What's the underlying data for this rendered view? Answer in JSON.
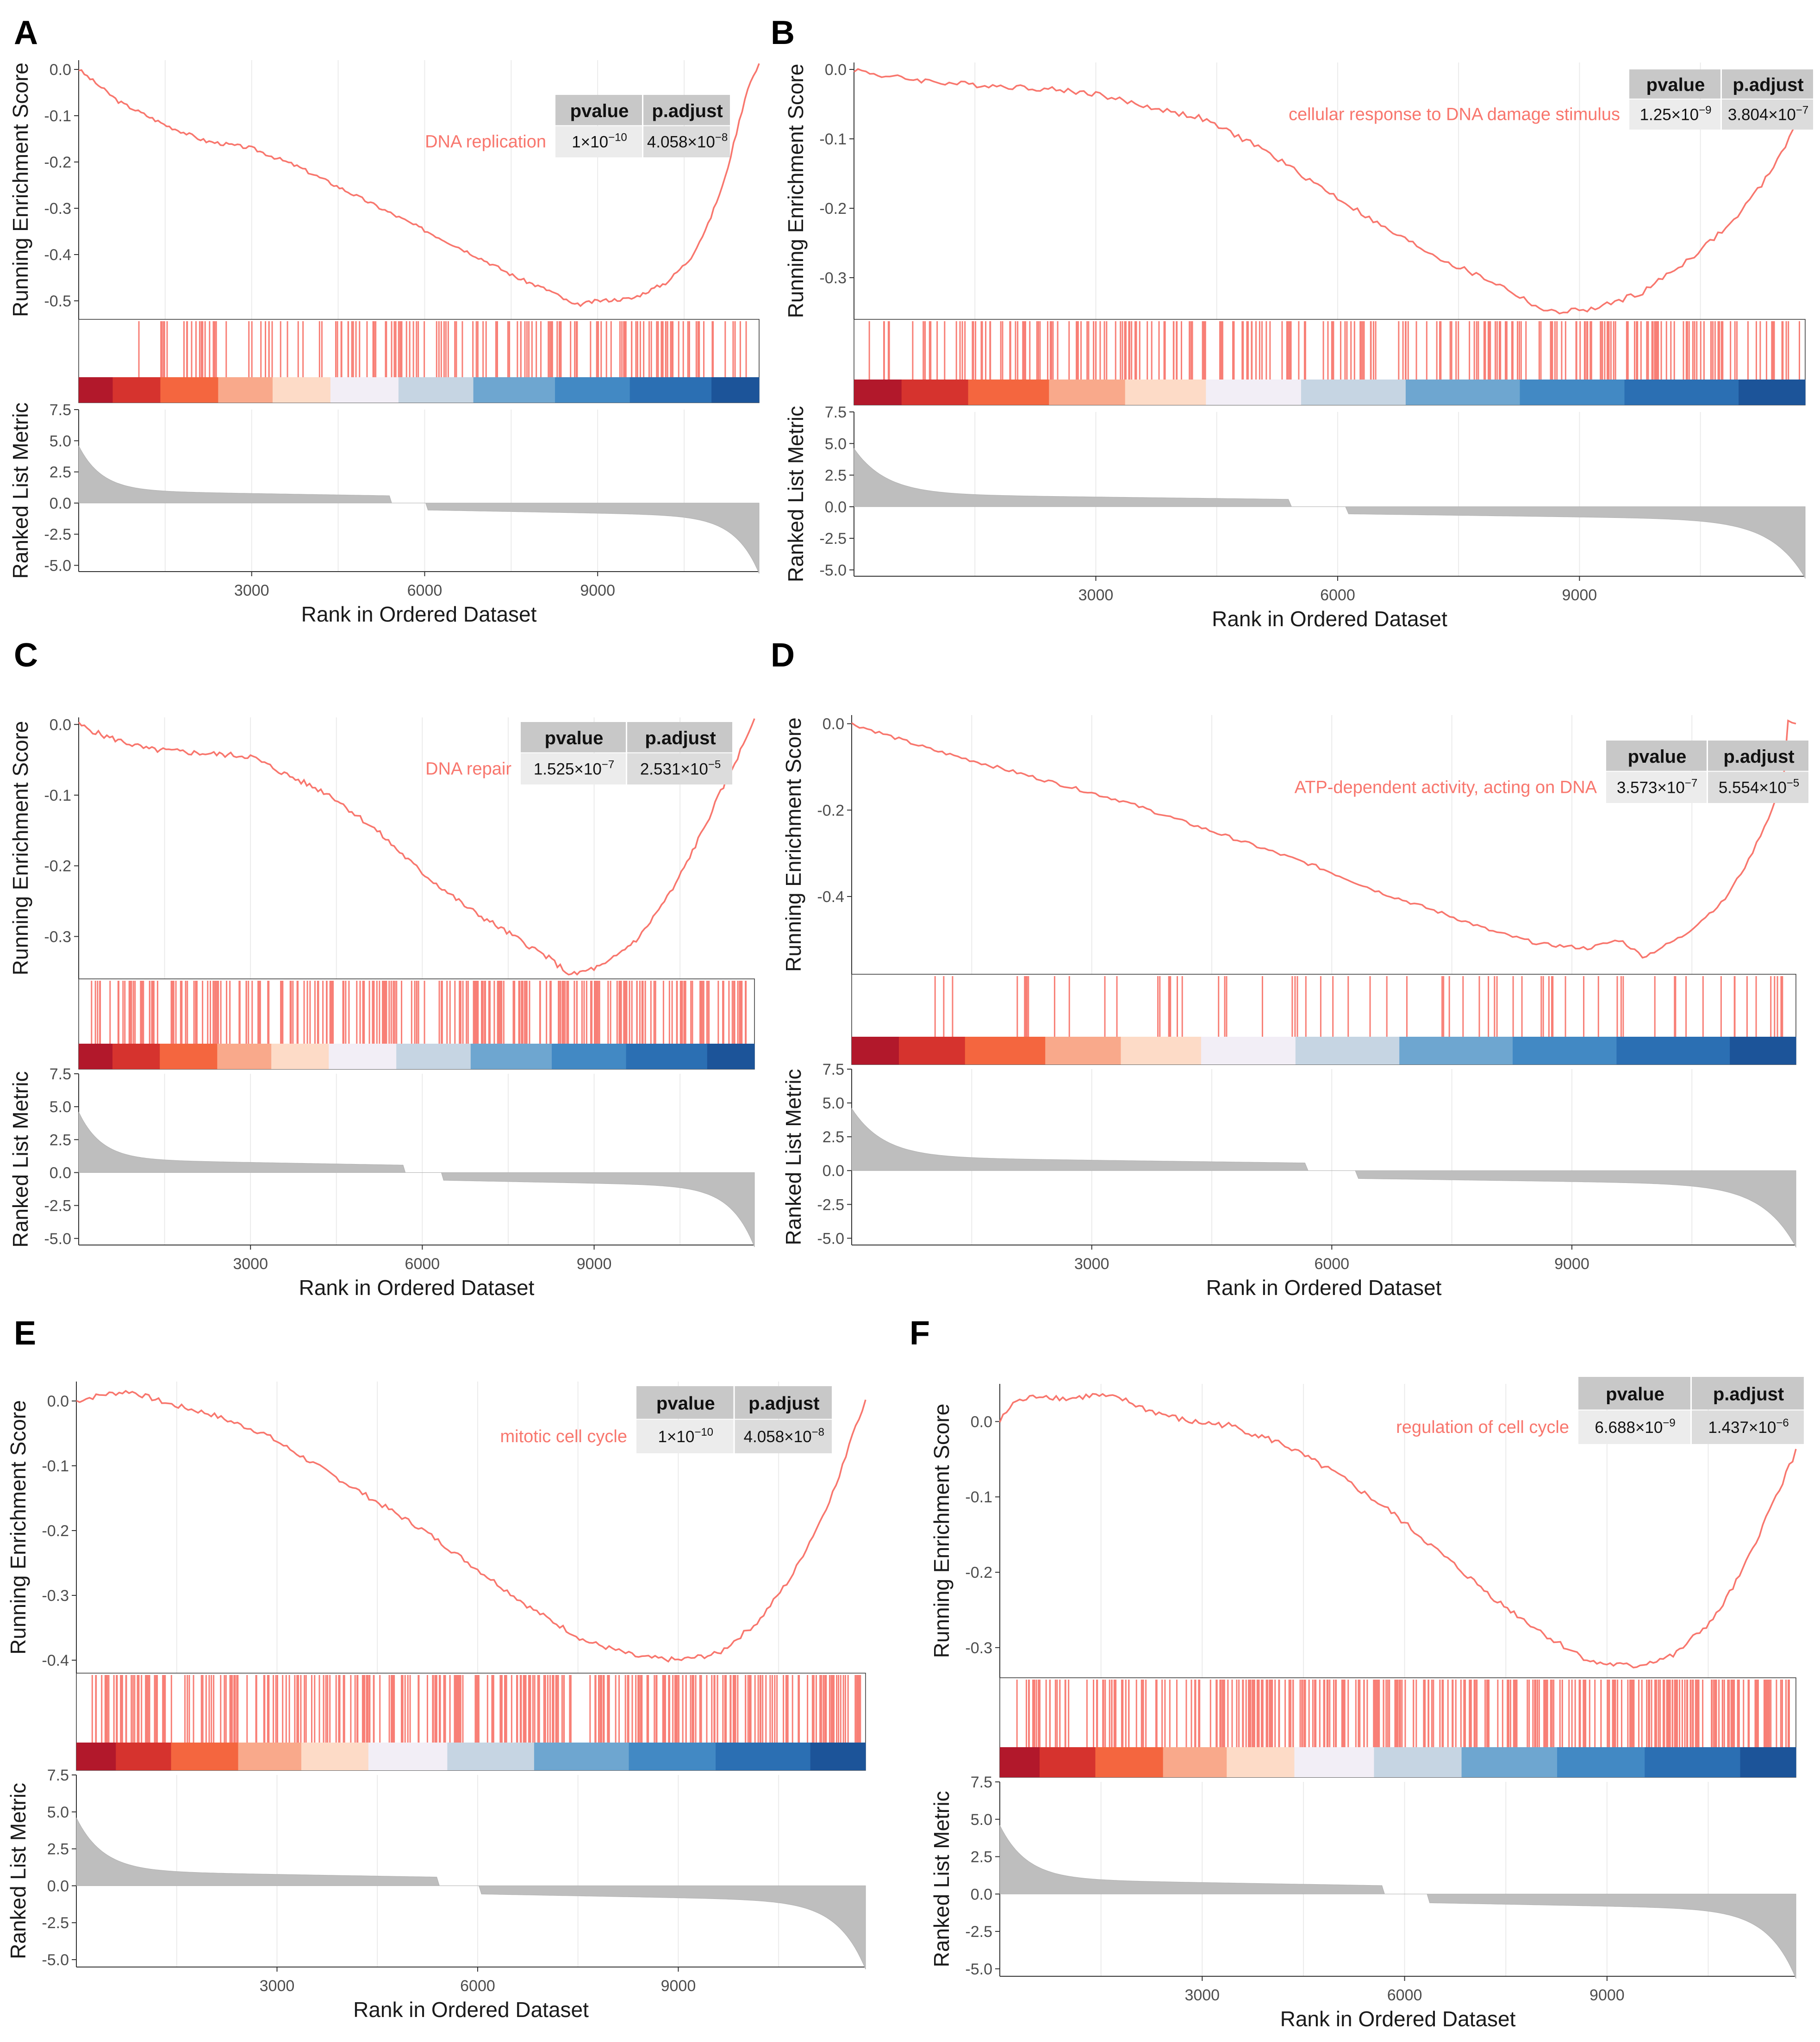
{
  "figure": {
    "panels": [
      {
        "letter": "A",
        "term": "DNA replication",
        "table": {
          "headers": [
            "pvalue",
            "p.adjust"
          ],
          "row": [
            [
              "1×10",
              "−10"
            ],
            [
              "4.058×10",
              "−8"
            ]
          ]
        },
        "chart_data": {
          "type": "line",
          "xlabel": "Rank in Ordered Dataset",
          "ylabel_top": "Running Enrichment Score",
          "ylabel_bottom": "Ranked List Metric",
          "x_ticks": [
            "3000",
            "6000",
            "9000"
          ],
          "es_ticks": [
            "0.0",
            "-0.1",
            "-0.2",
            "-0.3",
            "-0.4",
            "-0.5"
          ],
          "es_tick_values": [
            0.0,
            -0.1,
            -0.2,
            -0.3,
            -0.4,
            -0.5
          ],
          "metric_ticks": [
            "7.5",
            "5.0",
            "2.5",
            "0.0",
            "-2.5",
            "-5.0"
          ],
          "xlim": [
            0,
            11800
          ],
          "es_ylim": [
            -0.54,
            0.02
          ],
          "series": [
            {
              "x": [
                0,
                700,
                1500,
                2200,
                3000,
                3800,
                4600,
                5400,
                6200,
                7000,
                7600,
                8200,
                8600,
                9000,
                9600,
                10200,
                10600,
                10900,
                11200,
                11400,
                11600,
                11800
              ],
              "values": [
                0.0,
                -0.07,
                -0.12,
                -0.155,
                -0.17,
                -0.21,
                -0.26,
                -0.31,
                -0.36,
                -0.41,
                -0.45,
                -0.48,
                -0.51,
                -0.5,
                -0.495,
                -0.46,
                -0.41,
                -0.34,
                -0.24,
                -0.14,
                -0.04,
                0.01
              ]
            }
          ],
          "min_es_x": 8600,
          "hit_start_x": 800,
          "hit_end_x": 11650,
          "hit_count": 150,
          "metric_gap": [
            5400,
            6050
          ]
        }
      },
      {
        "letter": "B",
        "term": "cellular response to DNA damage stimulus",
        "table": {
          "headers": [
            "pvalue",
            "p.adjust"
          ],
          "row": [
            [
              "1.25×10",
              "−9"
            ],
            [
              "3.804×10",
              "−7"
            ]
          ]
        },
        "chart_data": {
          "type": "line",
          "xlabel": "Rank in Ordered Dataset",
          "ylabel_top": "Running Enrichment Score",
          "ylabel_bottom": "Ranked List Metric",
          "x_ticks": [
            "3000",
            "6000",
            "9000"
          ],
          "es_ticks": [
            "0.0",
            "-0.1",
            "-0.2",
            "-0.3"
          ],
          "es_tick_values": [
            0.0,
            -0.1,
            -0.2,
            -0.3
          ],
          "metric_ticks": [
            "7.5",
            "5.0",
            "2.5",
            "0.0",
            "-2.5",
            "-5.0"
          ],
          "xlim": [
            0,
            11800
          ],
          "es_ylim": [
            -0.36,
            0.01
          ],
          "series": [
            {
              "x": [
                0,
                400,
                1200,
                2000,
                2600,
                3000,
                3500,
                4300,
                5000,
                5800,
                6600,
                7400,
                8000,
                8600,
                9200,
                9800,
                10400,
                10900,
                11300,
                11600,
                11800
              ],
              "values": [
                0.0,
                -0.01,
                -0.02,
                -0.025,
                -0.03,
                -0.035,
                -0.05,
                -0.07,
                -0.11,
                -0.17,
                -0.23,
                -0.28,
                -0.31,
                -0.35,
                -0.345,
                -0.32,
                -0.27,
                -0.22,
                -0.16,
                -0.1,
                -0.06
              ]
            }
          ],
          "min_es_x": 8600,
          "hit_start_x": 150,
          "hit_end_x": 11750,
          "hit_count": 260,
          "metric_gap": [
            5400,
            6100
          ]
        }
      },
      {
        "letter": "C",
        "term": "DNA repair",
        "table": {
          "headers": [
            "pvalue",
            "p.adjust"
          ],
          "row": [
            [
              "1.525×10",
              "−7"
            ],
            [
              "2.531×10",
              "−5"
            ]
          ]
        },
        "chart_data": {
          "type": "line",
          "xlabel": "Rank in Ordered Dataset",
          "ylabel_top": "Running Enrichment Score",
          "ylabel_bottom": "Ranked List Metric",
          "x_ticks": [
            "3000",
            "6000",
            "9000"
          ],
          "es_ticks": [
            "0.0",
            "-0.1",
            "-0.2",
            "-0.3"
          ],
          "es_tick_values": [
            0.0,
            -0.1,
            -0.2,
            -0.3
          ],
          "metric_ticks": [
            "7.5",
            "5.0",
            "2.5",
            "0.0",
            "-2.5",
            "-5.0"
          ],
          "xlim": [
            0,
            11800
          ],
          "es_ylim": [
            -0.36,
            0.01
          ],
          "series": [
            {
              "x": [
                0,
                400,
                1200,
                2000,
                3000,
                3600,
                4400,
                5200,
                6000,
                6800,
                7600,
                8200,
                8600,
                9200,
                9800,
                10400,
                10900,
                11300,
                11600,
                11800
              ],
              "values": [
                0.0,
                -0.015,
                -0.035,
                -0.04,
                -0.045,
                -0.07,
                -0.1,
                -0.15,
                -0.21,
                -0.26,
                -0.3,
                -0.33,
                -0.355,
                -0.34,
                -0.3,
                -0.23,
                -0.15,
                -0.08,
                -0.03,
                0.01
              ]
            }
          ],
          "min_es_x": 8600,
          "hit_start_x": 150,
          "hit_end_x": 11700,
          "hit_count": 260,
          "metric_gap": [
            5700,
            6350
          ]
        }
      },
      {
        "letter": "D",
        "term": "ATP-dependent activity, acting on DNA",
        "table": {
          "headers": [
            "pvalue",
            "p.adjust"
          ],
          "row": [
            [
              "3.573×10",
              "−7"
            ],
            [
              "5.554×10",
              "−5"
            ]
          ]
        },
        "chart_data": {
          "type": "line",
          "xlabel": "Rank in Ordered Dataset",
          "ylabel_top": "Running Enrichment Score",
          "ylabel_bottom": "Ranked List Metric",
          "x_ticks": [
            "3000",
            "6000",
            "9000"
          ],
          "es_ticks": [
            "0.0",
            "-0.2",
            "-0.4"
          ],
          "es_tick_values": [
            0.0,
            -0.2,
            -0.4
          ],
          "metric_ticks": [
            "7.5",
            "5.0",
            "2.5",
            "0.0",
            "-2.5",
            "-5.0"
          ],
          "xlim": [
            0,
            11800
          ],
          "es_ylim": [
            -0.58,
            0.02
          ],
          "series": [
            {
              "x": [
                0,
                1000,
                1800,
                2600,
                3400,
                4200,
                5000,
                5800,
                6600,
                7400,
                8000,
                8600,
                9200,
                9600,
                9900,
                10400,
                10900,
                11200,
                11500,
                11650,
                11700,
                11800
              ],
              "values": [
                0.0,
                -0.06,
                -0.1,
                -0.14,
                -0.18,
                -0.23,
                -0.28,
                -0.33,
                -0.39,
                -0.44,
                -0.48,
                -0.51,
                -0.52,
                -0.5,
                -0.54,
                -0.49,
                -0.41,
                -0.32,
                -0.2,
                -0.12,
                0.01,
                0.0
              ]
            }
          ],
          "min_es_x": 9900,
          "hit_start_x": 1000,
          "hit_end_x": 11650,
          "hit_count": 70,
          "metric_gap": [
            5700,
            6300
          ]
        }
      },
      {
        "letter": "E",
        "term": "mitotic cell cycle",
        "table": {
          "headers": [
            "pvalue",
            "p.adjust"
          ],
          "row": [
            [
              "1×10",
              "−10"
            ],
            [
              "4.058×10",
              "−8"
            ]
          ]
        },
        "chart_data": {
          "type": "line",
          "xlabel": "Rank in Ordered Dataset",
          "ylabel_top": "Running Enrichment Score",
          "ylabel_bottom": "Ranked List Metric",
          "x_ticks": [
            "3000",
            "6000",
            "9000"
          ],
          "es_ticks": [
            "0.0",
            "-0.1",
            "-0.2",
            "-0.3",
            "-0.4"
          ],
          "es_tick_values": [
            0.0,
            -0.1,
            -0.2,
            -0.3,
            -0.4
          ],
          "metric_ticks": [
            "7.5",
            "5.0",
            "2.5",
            "0.0",
            "-2.5",
            "-5.0"
          ],
          "xlim": [
            0,
            11800
          ],
          "es_ylim": [
            -0.42,
            0.03
          ],
          "series": [
            {
              "x": [
                0,
                400,
                800,
                1400,
                2000,
                2800,
                3600,
                4400,
                5200,
                6000,
                6800,
                7600,
                8400,
                9000,
                9600,
                10200,
                10700,
                11100,
                11400,
                11600,
                11800
              ],
              "values": [
                0.0,
                0.01,
                0.015,
                -0.005,
                -0.02,
                -0.05,
                -0.1,
                -0.15,
                -0.2,
                -0.26,
                -0.32,
                -0.37,
                -0.395,
                -0.4,
                -0.39,
                -0.34,
                -0.27,
                -0.19,
                -0.12,
                -0.05,
                0.0
              ]
            }
          ],
          "min_es_x": 9000,
          "hit_start_x": 150,
          "hit_end_x": 11750,
          "hit_count": 320,
          "metric_gap": [
            5400,
            6050
          ]
        }
      },
      {
        "letter": "F",
        "term": "regulation of cell cycle",
        "table": {
          "headers": [
            "pvalue",
            "p.adjust"
          ],
          "row": [
            [
              "6.688×10",
              "−9"
            ],
            [
              "1.437×10",
              "−6"
            ]
          ]
        },
        "chart_data": {
          "type": "line",
          "xlabel": "Rank in Ordered Dataset",
          "ylabel_top": "Running Enrichment Score",
          "ylabel_bottom": "Ranked List Metric",
          "x_ticks": [
            "3000",
            "6000",
            "9000"
          ],
          "es_ticks": [
            "0.0",
            "-0.1",
            "-0.2",
            "-0.3"
          ],
          "es_tick_values": [
            0.0,
            -0.1,
            -0.2,
            -0.3
          ],
          "metric_ticks": [
            "7.5",
            "5.0",
            "2.5",
            "0.0",
            "-2.5",
            "-5.0"
          ],
          "xlim": [
            0,
            11800
          ],
          "es_ylim": [
            -0.34,
            0.05
          ],
          "series": [
            {
              "x": [
                0,
                200,
                600,
                1000,
                1400,
                1800,
                2200,
                2800,
                3400,
                4200,
                5000,
                5800,
                6600,
                7400,
                8200,
                8800,
                9400,
                10000,
                10600,
                11000,
                11400,
                11800
              ],
              "values": [
                0.0,
                0.025,
                0.035,
                0.03,
                0.035,
                0.03,
                0.015,
                0.0,
                -0.005,
                -0.03,
                -0.07,
                -0.12,
                -0.18,
                -0.24,
                -0.29,
                -0.32,
                -0.325,
                -0.31,
                -0.26,
                -0.2,
                -0.12,
                -0.04
              ]
            }
          ],
          "min_es_x": 9400,
          "hit_start_x": 150,
          "hit_end_x": 11750,
          "hit_count": 340,
          "metric_gap": [
            5700,
            6350
          ]
        }
      }
    ]
  }
}
